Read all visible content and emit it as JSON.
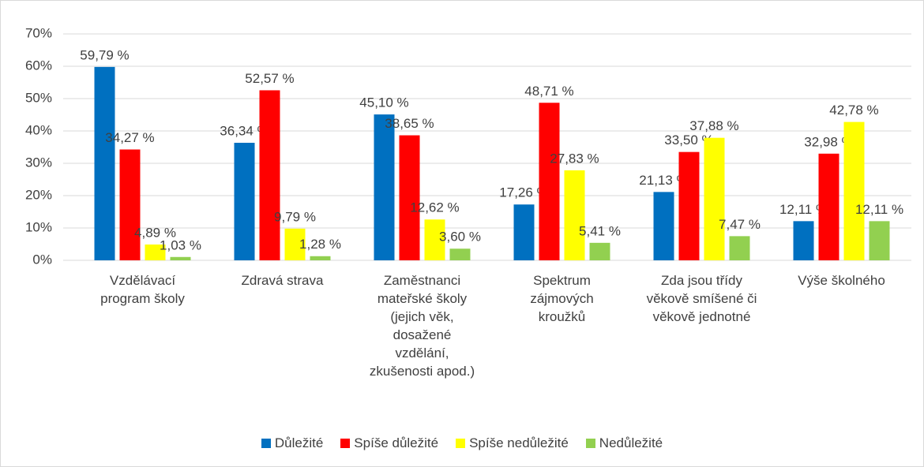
{
  "chart_data": {
    "type": "bar",
    "categories": [
      "Vzdělávací program školy",
      "Zdravá strava",
      "Zaměstnanci mateřské školy (jejich věk, dosažené vzdělání, zkušenosti apod.)",
      "Spektrum zájmových kroužků",
      "Zda jsou třídy věkově smíšené či věkově jednotné",
      "Výše školného"
    ],
    "series": [
      {
        "name": "Důležité",
        "color": "#0070c0",
        "values": [
          59.79,
          36.34,
          45.1,
          17.26,
          21.13,
          12.11
        ],
        "value_labels": [
          "59,79 %",
          "36,34 %",
          "45,10 %",
          "17,26 %",
          "21,13 %",
          "12,11 %"
        ]
      },
      {
        "name": "Spíše důležité",
        "color": "#ff0000",
        "values": [
          34.27,
          52.57,
          38.65,
          48.71,
          33.5,
          32.98
        ],
        "value_labels": [
          "34,27 %",
          "52,57 %",
          "38,65 %",
          "48,71 %",
          "33,50 %",
          "32,98 %"
        ]
      },
      {
        "name": "Spíše nedůležité",
        "color": "#ffff00",
        "values": [
          4.89,
          9.79,
          12.62,
          27.83,
          37.88,
          42.78
        ],
        "value_labels": [
          "4,89 %",
          "9,79 %",
          "12,62 %",
          "27,83 %",
          "37,88 %",
          "42,78 %"
        ]
      },
      {
        "name": "Nedůležité",
        "color": "#92d050",
        "values": [
          1.03,
          1.28,
          3.6,
          5.41,
          7.47,
          12.11
        ],
        "value_labels": [
          "1,03 %",
          "1,28 %",
          "3,60 %",
          "5,41 %",
          "7,47 %",
          "12,11 %"
        ]
      }
    ],
    "ylim": [
      0,
      70
    ],
    "yticks": [
      {
        "value": 0,
        "label": "0%"
      },
      {
        "value": 10,
        "label": "10%"
      },
      {
        "value": 20,
        "label": "20%"
      },
      {
        "value": 30,
        "label": "30%"
      },
      {
        "value": 40,
        "label": "40%"
      },
      {
        "value": 50,
        "label": "50%"
      },
      {
        "value": 60,
        "label": "60%"
      },
      {
        "value": 70,
        "label": "70%"
      }
    ],
    "grid": true,
    "legend": "bottom"
  }
}
